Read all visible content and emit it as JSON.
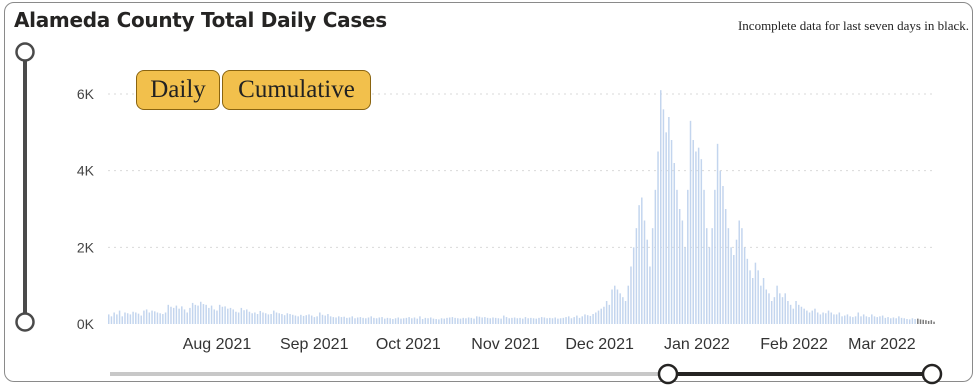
{
  "header": {
    "title": "Alameda County Total Daily Cases",
    "note": "Incomplete data for last seven days in black."
  },
  "toggle": {
    "daily_label": "Daily",
    "cumulative_label": "Cumulative",
    "selected": "Daily"
  },
  "colors": {
    "bar": "#c3d5ee",
    "incomplete_bar": "#7a7a7a",
    "button_fill": "#f2c04c",
    "slider_track": "#c8c8c8",
    "slider_active": "#252423",
    "gridline": "#d9d9d9"
  },
  "chart_data": {
    "type": "bar",
    "title": "Alameda County Total Daily Cases",
    "x_start_date": "2021-07-10",
    "x_end_date": "2022-03-31",
    "ylim": [
      0,
      6600
    ],
    "y_ticks": [
      0,
      2000,
      4000,
      6000
    ],
    "y_tick_labels": [
      "0K",
      "2K",
      "4K",
      "6K"
    ],
    "x_tick_labels": [
      "Aug 2021",
      "Sep 2021",
      "Oct 2021",
      "Nov 2021",
      "Dec 2021",
      "Jan 2022",
      "Feb 2022",
      "Mar 2022"
    ],
    "x_tick_dates": [
      "2021-08-01",
      "2021-09-01",
      "2021-10-01",
      "2021-11-01",
      "2021-12-01",
      "2022-01-01",
      "2022-02-01",
      "2022-03-01"
    ],
    "grid": true,
    "incomplete_last_days": 7,
    "values": [
      250,
      200,
      300,
      250,
      350,
      200,
      300,
      280,
      250,
      320,
      300,
      270,
      220,
      350,
      380,
      300,
      350,
      330,
      300,
      280,
      260,
      300,
      500,
      450,
      420,
      480,
      400,
      460,
      380,
      300,
      420,
      550,
      500,
      480,
      580,
      520,
      500,
      420,
      480,
      380,
      350,
      500,
      450,
      460,
      400,
      420,
      380,
      320,
      300,
      420,
      360,
      380,
      320,
      280,
      300,
      260,
      340,
      300,
      280,
      250,
      260,
      350,
      300,
      280,
      260,
      230,
      280,
      260,
      240,
      220,
      200,
      240,
      210,
      230,
      250,
      220,
      180,
      200,
      300,
      240,
      220,
      260,
      200,
      180,
      170,
      200,
      180,
      190,
      160,
      170,
      200,
      150,
      170,
      180,
      160,
      150,
      170,
      200,
      160,
      150,
      170,
      180,
      140,
      160,
      150,
      130,
      150,
      170,
      140,
      150,
      160,
      180,
      150,
      170,
      140,
      200,
      130,
      160,
      150,
      170,
      140,
      130,
      120,
      150,
      140,
      160,
      170,
      180,
      160,
      150,
      140,
      160,
      150,
      170,
      160,
      140,
      200,
      190,
      170,
      180,
      160,
      150,
      170,
      160,
      150,
      140,
      220,
      180,
      150,
      160,
      170,
      150,
      160,
      140,
      180,
      150,
      160,
      150,
      140,
      160,
      180,
      170,
      150,
      160,
      150,
      170,
      140,
      150,
      160,
      180,
      200,
      150,
      180,
      220,
      160,
      200,
      250,
      230,
      210,
      260,
      300,
      350,
      400,
      450,
      600,
      500,
      900,
      1000,
      900,
      800,
      700,
      600,
      1000,
      1500,
      2000,
      2500,
      3100,
      3300,
      2700,
      2200,
      1500,
      2500,
      3500,
      4500,
      6100,
      5600,
      5000,
      5400,
      4800,
      4200,
      3500,
      3000,
      2700,
      2000,
      3500,
      5300,
      4800,
      4500,
      4600,
      4300,
      3500,
      2500,
      2000,
      2500,
      3500,
      4700,
      4000,
      3600,
      3000,
      2500,
      2000,
      1800,
      2200,
      2700,
      2500,
      2000,
      1700,
      1400,
      1200,
      1600,
      1400,
      1000,
      1200,
      900,
      800,
      600,
      700,
      1000,
      800,
      700,
      800,
      600,
      500,
      400,
      600,
      500,
      450,
      400,
      350,
      300,
      350,
      400,
      300,
      250,
      300,
      280,
      350,
      300,
      250,
      250,
      300,
      200,
      220,
      250,
      200,
      180,
      200,
      300,
      200,
      250,
      200,
      180,
      250,
      200,
      180,
      200,
      220,
      160,
      180,
      150,
      170,
      150,
      200,
      160,
      150,
      130,
      120,
      150,
      130,
      140,
      120,
      110,
      100,
      80,
      100,
      60
    ]
  }
}
